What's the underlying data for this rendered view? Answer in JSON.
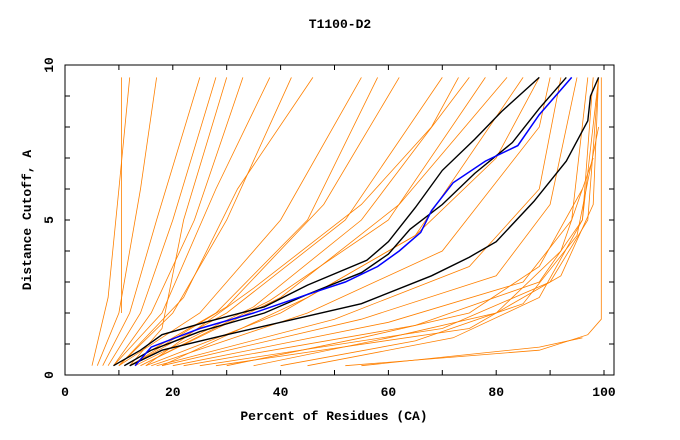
{
  "chart_data": {
    "type": "line",
    "title": "T1100-D2",
    "xlabel": "Percent of Residues (CA)",
    "ylabel": "Distance Cutoff, A",
    "xlim": [
      0,
      102
    ],
    "ylim": [
      0,
      10
    ],
    "xticks": [
      0,
      20,
      40,
      60,
      80,
      100
    ],
    "yticks": [
      0,
      5,
      10
    ],
    "grid": false,
    "colors": {
      "models": "#ff8000",
      "highlighted": "#000000",
      "selected": "#0000ff"
    },
    "series_orange": [
      [
        [
          10.5,
          2
        ],
        [
          10.5,
          9.6
        ]
      ],
      [
        [
          5,
          0.3
        ],
        [
          8,
          2.5
        ],
        [
          10,
          6
        ],
        [
          12,
          9.6
        ]
      ],
      [
        [
          6,
          0.3
        ],
        [
          10,
          2
        ],
        [
          14,
          6
        ],
        [
          17,
          9.6
        ]
      ],
      [
        [
          7,
          0.3
        ],
        [
          12,
          2
        ],
        [
          17,
          5
        ],
        [
          25,
          9.6
        ]
      ],
      [
        [
          8,
          0.3
        ],
        [
          14,
          2
        ],
        [
          20,
          5
        ],
        [
          28,
          9.6
        ]
      ],
      [
        [
          12,
          0.3
        ],
        [
          18,
          1.5
        ],
        [
          22,
          5
        ],
        [
          30,
          9.6
        ]
      ],
      [
        [
          9,
          0.3
        ],
        [
          16,
          2
        ],
        [
          24,
          5
        ],
        [
          33,
          9.6
        ]
      ],
      [
        [
          9,
          0.3
        ],
        [
          18,
          2
        ],
        [
          28,
          6
        ],
        [
          38,
          9.6
        ]
      ],
      [
        [
          10,
          0.3
        ],
        [
          20,
          2
        ],
        [
          30,
          5
        ],
        [
          42,
          9.6
        ]
      ],
      [
        [
          10,
          0.3
        ],
        [
          22,
          2.5
        ],
        [
          32,
          6
        ],
        [
          46,
          9.6
        ]
      ],
      [
        [
          10,
          0.3
        ],
        [
          25,
          2
        ],
        [
          40,
          5
        ],
        [
          55,
          9.6
        ]
      ],
      [
        [
          11,
          0.3
        ],
        [
          28,
          2
        ],
        [
          45,
          5
        ],
        [
          58,
          9.6
        ]
      ],
      [
        [
          12,
          0.3
        ],
        [
          30,
          2.2
        ],
        [
          48,
          5.5
        ],
        [
          62,
          9.6
        ]
      ],
      [
        [
          12,
          0.3
        ],
        [
          30,
          2
        ],
        [
          52,
          5
        ],
        [
          70,
          9.6
        ]
      ],
      [
        [
          15,
          0.3
        ],
        [
          35,
          2.8
        ],
        [
          55,
          5.5
        ],
        [
          68,
          8
        ],
        [
          73,
          9.6
        ]
      ],
      [
        [
          13,
          0.3
        ],
        [
          35,
          2.2
        ],
        [
          55,
          5
        ],
        [
          75,
          9.6
        ]
      ],
      [
        [
          14,
          0.3
        ],
        [
          38,
          2.4
        ],
        [
          60,
          5
        ],
        [
          78,
          9.6
        ]
      ],
      [
        [
          14,
          0.3
        ],
        [
          40,
          2.5
        ],
        [
          62,
          5.5
        ],
        [
          82,
          9.6
        ]
      ],
      [
        [
          15,
          0.3
        ],
        [
          40,
          2
        ],
        [
          65,
          4.5
        ],
        [
          85,
          9.6
        ]
      ],
      [
        [
          18,
          0.3
        ],
        [
          45,
          2.5
        ],
        [
          65,
          4.5
        ],
        [
          80,
          7
        ],
        [
          88,
          9.6
        ]
      ],
      [
        [
          16,
          0.3
        ],
        [
          45,
          2
        ],
        [
          70,
          4
        ],
        [
          88,
          8
        ],
        [
          90,
          9.6
        ]
      ],
      [
        [
          17,
          0.3
        ],
        [
          50,
          1.8
        ],
        [
          75,
          3.5
        ],
        [
          88,
          6
        ],
        [
          92,
          9.6
        ]
      ],
      [
        [
          18,
          0.3
        ],
        [
          55,
          1.8
        ],
        [
          80,
          3.2
        ],
        [
          90,
          5.5
        ],
        [
          95,
          9.6
        ]
      ],
      [
        [
          20,
          0.3
        ],
        [
          60,
          1.7
        ],
        [
          85,
          3
        ],
        [
          94,
          5
        ],
        [
          97,
          9.6
        ]
      ],
      [
        [
          22,
          0.3
        ],
        [
          65,
          1.6
        ],
        [
          88,
          3
        ],
        [
          96,
          5
        ],
        [
          98,
          9.6
        ]
      ],
      [
        [
          25,
          0.3
        ],
        [
          70,
          1.5
        ],
        [
          90,
          3
        ],
        [
          97,
          5
        ],
        [
          99,
          9.6
        ]
      ],
      [
        [
          28,
          0.3
        ],
        [
          75,
          1.5
        ],
        [
          92,
          3.2
        ],
        [
          98,
          5.5
        ],
        [
          99,
          9.6
        ]
      ],
      [
        [
          30,
          0.3
        ],
        [
          55,
          1.2
        ],
        [
          75,
          2
        ],
        [
          88,
          3.5
        ],
        [
          96,
          6
        ]
      ],
      [
        [
          35,
          0.3
        ],
        [
          60,
          1.2
        ],
        [
          80,
          2
        ],
        [
          92,
          4
        ],
        [
          98,
          7
        ]
      ],
      [
        [
          40,
          0.3
        ],
        [
          65,
          1.1
        ],
        [
          85,
          2.3
        ],
        [
          95,
          4.5
        ],
        [
          99,
          8
        ]
      ],
      [
        [
          45,
          0.3
        ],
        [
          72,
          1.2
        ],
        [
          88,
          2.5
        ],
        [
          96,
          5
        ],
        [
          99,
          9.6
        ]
      ],
      [
        [
          52,
          0.3
        ],
        [
          88,
          0.8
        ],
        [
          97,
          1.3
        ],
        [
          99.5,
          1.8
        ],
        [
          99.5,
          9.6
        ]
      ],
      [
        [
          55,
          0.3
        ],
        [
          88,
          0.9
        ],
        [
          96,
          1.2
        ]
      ]
    ],
    "series_black": [
      [
        [
          9,
          0.3
        ],
        [
          14,
          0.8
        ],
        [
          18,
          1.3
        ],
        [
          26,
          1.7
        ],
        [
          37,
          2.2
        ],
        [
          45,
          2.9
        ],
        [
          56,
          3.7
        ],
        [
          60,
          4.3
        ],
        [
          65,
          5.4
        ],
        [
          70,
          6.6
        ],
        [
          76,
          7.6
        ],
        [
          81,
          8.5
        ],
        [
          88,
          9.6
        ]
      ],
      [
        [
          11,
          0.3
        ],
        [
          16,
          0.8
        ],
        [
          25,
          1.4
        ],
        [
          37,
          2.0
        ],
        [
          45,
          2.6
        ],
        [
          55,
          3.3
        ],
        [
          60,
          3.9
        ],
        [
          64,
          4.7
        ],
        [
          70,
          5.5
        ],
        [
          76,
          6.5
        ],
        [
          83,
          7.5
        ],
        [
          88,
          8.6
        ],
        [
          93,
          9.6
        ]
      ],
      [
        [
          12,
          0.3
        ],
        [
          18,
          0.8
        ],
        [
          30,
          1.3
        ],
        [
          40,
          1.7
        ],
        [
          55,
          2.3
        ],
        [
          68,
          3.2
        ],
        [
          75,
          3.8
        ],
        [
          80,
          4.3
        ],
        [
          87,
          5.6
        ],
        [
          93,
          6.9
        ],
        [
          97,
          8.2
        ],
        [
          97.5,
          9.0
        ],
        [
          99,
          9.6
        ]
      ]
    ],
    "series_blue": [
      [
        [
          13,
          0.3
        ],
        [
          16,
          0.9
        ],
        [
          25,
          1.5
        ],
        [
          35,
          2.0
        ],
        [
          45,
          2.6
        ],
        [
          52,
          3.0
        ],
        [
          58,
          3.5
        ],
        [
          62,
          4.0
        ],
        [
          66,
          4.6
        ],
        [
          68,
          5.3
        ],
        [
          72,
          6.2
        ],
        [
          78,
          6.9
        ],
        [
          84,
          7.4
        ],
        [
          88,
          8.4
        ],
        [
          94,
          9.6
        ]
      ]
    ]
  }
}
